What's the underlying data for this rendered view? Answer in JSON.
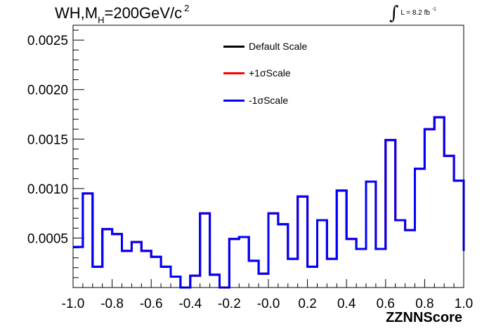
{
  "chart_data": {
    "type": "line",
    "title_prefix": "WH,M",
    "title_sub": "H",
    "title_mid": "=200GeV/c",
    "title_sup": "2",
    "lumi_text": "L = 8.2 fb",
    "lumi_sup": "-1",
    "xlabel": "ZZNNScore",
    "ylabel": "",
    "xlim": [
      -1.0,
      1.0
    ],
    "ylim": [
      0.0,
      0.00265
    ],
    "x_ticks": [
      "-1.0",
      "-0.8",
      "-0.6",
      "-0.4",
      "-0.2",
      "-0.0",
      "0.2",
      "0.4",
      "0.6",
      "0.8",
      "1.0"
    ],
    "y_ticks": [
      "0.0005",
      "0.0010",
      "0.0015",
      "0.0020",
      "0.0025"
    ],
    "bin_edges": [
      -1.0,
      -0.95,
      -0.9,
      -0.85,
      -0.8,
      -0.75,
      -0.7,
      -0.65,
      -0.6,
      -0.55,
      -0.5,
      -0.45,
      -0.4,
      -0.35,
      -0.3,
      -0.25,
      -0.2,
      -0.15,
      -0.1,
      -0.05,
      0.0,
      0.05,
      0.1,
      0.15,
      0.2,
      0.25,
      0.3,
      0.35,
      0.4,
      0.45,
      0.5,
      0.55,
      0.6,
      0.65,
      0.7,
      0.75,
      0.8,
      0.85,
      0.9,
      0.95,
      1.0
    ],
    "series": [
      {
        "name": "Default Scale",
        "color": "#000000",
        "values": [
          0.00041,
          0.00095,
          0.00021,
          0.00059,
          0.00054,
          0.00037,
          0.00046,
          0.00037,
          0.00031,
          0.00021,
          0.00011,
          0.0,
          0.00012,
          0.00075,
          0.00013,
          0.0,
          0.00049,
          0.00051,
          0.00027,
          0.00014,
          0.00075,
          0.00064,
          0.00029,
          0.00092,
          0.00021,
          0.00068,
          0.00029,
          0.00098,
          0.00049,
          0.00039,
          0.00107,
          0.00039,
          0.00149,
          0.00068,
          0.00058,
          0.0012,
          0.0016,
          0.00172,
          0.00133,
          0.00108,
          0.00037
        ]
      },
      {
        "name": "+1σScale",
        "color": "#ff0000",
        "values": [
          0.00041,
          0.00095,
          0.00021,
          0.00059,
          0.00054,
          0.00037,
          0.00046,
          0.00037,
          0.00031,
          0.00021,
          0.00011,
          0.0,
          0.00012,
          0.00075,
          0.00013,
          0.0,
          0.00049,
          0.00051,
          0.00027,
          0.00014,
          0.00075,
          0.00064,
          0.00029,
          0.00092,
          0.00021,
          0.00068,
          0.00029,
          0.00098,
          0.00049,
          0.00039,
          0.00107,
          0.00039,
          0.00149,
          0.00068,
          0.00058,
          0.0012,
          0.0016,
          0.00172,
          0.00133,
          0.00108,
          0.00037
        ]
      },
      {
        "name": "-1σScale",
        "color": "#0000ff",
        "values": [
          0.00041,
          0.00095,
          0.00021,
          0.00059,
          0.00054,
          0.00037,
          0.00046,
          0.00037,
          0.00031,
          0.00021,
          0.00011,
          0.0,
          0.00012,
          0.00075,
          0.00013,
          0.0,
          0.00049,
          0.00051,
          0.00027,
          0.00014,
          0.00075,
          0.00064,
          0.00029,
          0.00092,
          0.00021,
          0.00068,
          0.00029,
          0.00098,
          0.00049,
          0.00039,
          0.00107,
          0.00039,
          0.00149,
          0.00068,
          0.00058,
          0.0012,
          0.0016,
          0.00172,
          0.00133,
          0.00108,
          0.00037
        ]
      }
    ],
    "legend": [
      "Default Scale",
      "+1σScale",
      "-1σScale"
    ],
    "legend_position": "top-center",
    "grid": false
  }
}
